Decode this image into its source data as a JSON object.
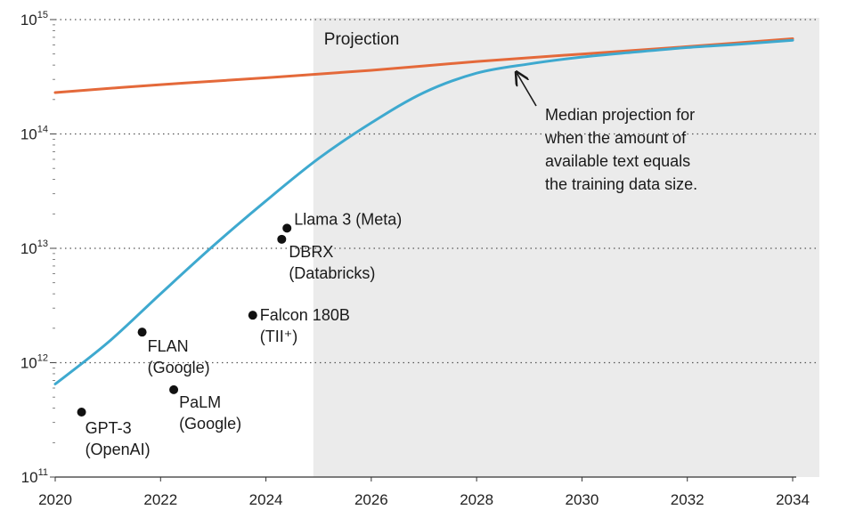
{
  "chart_data": {
    "type": "line",
    "x_ticks": [
      "2020",
      "2022",
      "2024",
      "2026",
      "2028",
      "2030",
      "2032",
      "2034"
    ],
    "xlim": [
      2020,
      2034
    ],
    "y_ticks": [
      {
        "value": 100000000000.0,
        "base": "10",
        "exp": "11"
      },
      {
        "value": 1000000000000.0,
        "base": "10",
        "exp": "12"
      },
      {
        "value": 10000000000000.0,
        "base": "10",
        "exp": "13"
      },
      {
        "value": 100000000000000.0,
        "base": "10",
        "exp": "14"
      },
      {
        "value": 1000000000000000.0,
        "base": "10",
        "exp": "15"
      }
    ],
    "ylim": [
      100000000000.0,
      1000000000000000.0
    ],
    "yscale": "log",
    "grid": "dotted horizontal at decades",
    "projection_region": {
      "label": "Projection",
      "from_x": 2024.9,
      "to_x": 2034,
      "shade_color": "#ebebeb"
    },
    "series": [
      {
        "color": "#e4693a",
        "x": [
          2020.0,
          2022.0,
          2024.0,
          2026.0,
          2028.0,
          2030.0,
          2032.0,
          2034.0
        ],
        "y": [
          230000000000000.0,
          270000000000000.0,
          310000000000000.0,
          360000000000000.0,
          430000000000000.0,
          500000000000000.0,
          580000000000000.0,
          680000000000000.0
        ]
      },
      {
        "color": "#3ea9cf",
        "x": [
          2020.0,
          2021.0,
          2022.0,
          2023.0,
          2024.0,
          2025.0,
          2026.0,
          2027.0,
          2028.0,
          2029.0,
          2030.0,
          2031.0,
          2032.0,
          2033.0,
          2034.0
        ],
        "y": [
          650000000000.0,
          1500000000000.0,
          4000000000000.0,
          10500000000000.0,
          26000000000000.0,
          61000000000000.0,
          125000000000000.0,
          230000000000000.0,
          340000000000000.0,
          410000000000000.0,
          470000000000000.0,
          520000000000000.0,
          570000000000000.0,
          610000000000000.0,
          660000000000000.0
        ]
      }
    ],
    "points": [
      {
        "x": 2020.5,
        "y": 370000000000.0,
        "label_lines": [
          "GPT-3",
          "(OpenAI)"
        ]
      },
      {
        "x": 2021.65,
        "y": 1850000000000.0,
        "label_lines": [
          "FLAN",
          "(Google)"
        ]
      },
      {
        "x": 2022.25,
        "y": 580000000000.0,
        "label_lines": [
          "PaLM",
          "(Google)"
        ]
      },
      {
        "x": 2023.75,
        "y": 2600000000000.0,
        "label_lines": [
          "Falcon 180B",
          "(TII⁺)"
        ]
      },
      {
        "x": 2024.3,
        "y": 12000000000000.0,
        "label_lines": [
          "DBRX",
          "(Databricks)"
        ]
      },
      {
        "x": 2024.4,
        "y": 15000000000000.0,
        "label_lines": [
          "Llama 3 (Meta)"
        ]
      }
    ],
    "annotation": {
      "lines": [
        "Median projection for",
        "when the amount of",
        "available text equals",
        "the training data size."
      ],
      "arrow_target": {
        "x": 2028.7,
        "y": 370000000000000.0
      }
    }
  }
}
